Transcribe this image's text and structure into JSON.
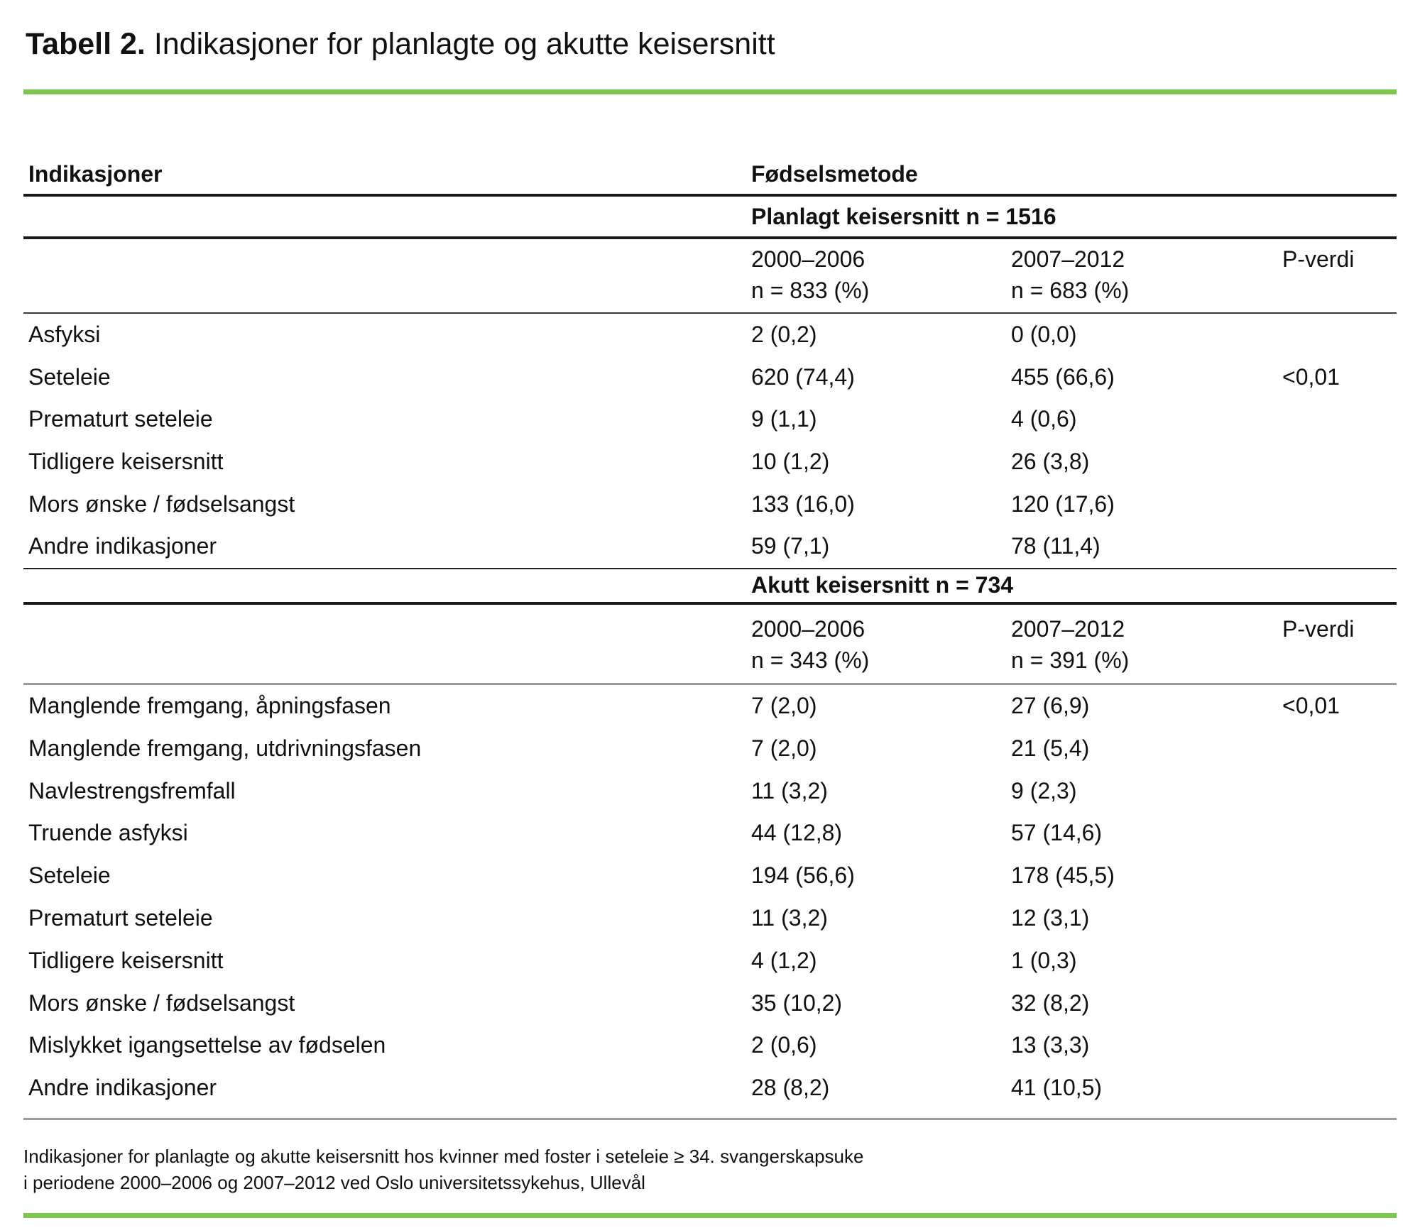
{
  "title": {
    "prefix": "Tabell 2.",
    "text": " Indikasjoner for planlagte og akutte keisersnitt"
  },
  "colors": {
    "accent_green": "#7dc74f",
    "rule_black": "#1a1a1a",
    "rule_gray": "#9b9b9b",
    "text": "#111111"
  },
  "table": {
    "col1_header": "Indikasjoner",
    "col2_header": "Fødselsmetode",
    "sections": [
      {
        "title": "Planlagt keisersnitt n = 1516",
        "columns": {
          "period1": "2000–2006",
          "period1_n": "n = 833 (%)",
          "period2": "2007–2012",
          "period2_n": "n = 683 (%)",
          "pvalue": "P-verdi"
        },
        "rows": [
          {
            "label": "Asfyksi",
            "v1": "2 (0,2)",
            "v2": "0 (0,0)",
            "p": ""
          },
          {
            "label": "Seteleie",
            "v1": "620 (74,4)",
            "v2": "455 (66,6)",
            "p": "<0,01"
          },
          {
            "label": "Prematurt seteleie",
            "v1": "9 (1,1)",
            "v2": "4 (0,6)",
            "p": ""
          },
          {
            "label": "Tidligere keisersnitt",
            "v1": "10 (1,2)",
            "v2": "26 (3,8)",
            "p": ""
          },
          {
            "label": "Mors ønske / fødselsangst",
            "v1": "133 (16,0)",
            "v2": "120 (17,6)",
            "p": ""
          },
          {
            "label": "Andre indikasjoner",
            "v1": "59 (7,1)",
            "v2": "78 (11,4)",
            "p": ""
          }
        ]
      },
      {
        "title": "Akutt keisersnitt n = 734",
        "columns": {
          "period1": "2000–2006",
          "period1_n": "n = 343 (%)",
          "period2": "2007–2012",
          "period2_n": "n = 391 (%)",
          "pvalue": "P-verdi"
        },
        "rows": [
          {
            "label": "Manglende fremgang, åpningsfasen",
            "v1": "7 (2,0)",
            "v2": "27 (6,9)",
            "p": "<0,01"
          },
          {
            "label": "Manglende fremgang, utdrivningsfasen",
            "v1": "7 (2,0)",
            "v2": "21 (5,4)",
            "p": ""
          },
          {
            "label": "Navlestrengsfremfall",
            "v1": "11 (3,2)",
            "v2": "9 (2,3)",
            "p": ""
          },
          {
            "label": "Truende asfyksi",
            "v1": "44 (12,8)",
            "v2": "57 (14,6)",
            "p": ""
          },
          {
            "label": "Seteleie",
            "v1": "194 (56,6)",
            "v2": "178 (45,5)",
            "p": ""
          },
          {
            "label": "Prematurt seteleie",
            "v1": "11 (3,2)",
            "v2": "12 (3,1)",
            "p": ""
          },
          {
            "label": "Tidligere keisersnitt",
            "v1": "4 (1,2)",
            "v2": "1 (0,3)",
            "p": ""
          },
          {
            "label": "Mors ønske / fødselsangst",
            "v1": "35 (10,2)",
            "v2": "32 (8,2)",
            "p": ""
          },
          {
            "label": "Mislykket igangsettelse av fødselen",
            "v1": "2 (0,6)",
            "v2": "13 (3,3)",
            "p": ""
          },
          {
            "label": "Andre indikasjoner",
            "v1": "28 (8,2)",
            "v2": "41 (10,5)",
            "p": ""
          }
        ]
      }
    ]
  },
  "footnote": {
    "line1": "Indikasjoner for planlagte og akutte keisersnitt hos kvinner med foster i seteleie ≥ 34. svangerskapsuke",
    "line2": "i periodene 2000–2006 og 2007–2012 ved Oslo universitetssykehus, Ullevål"
  }
}
